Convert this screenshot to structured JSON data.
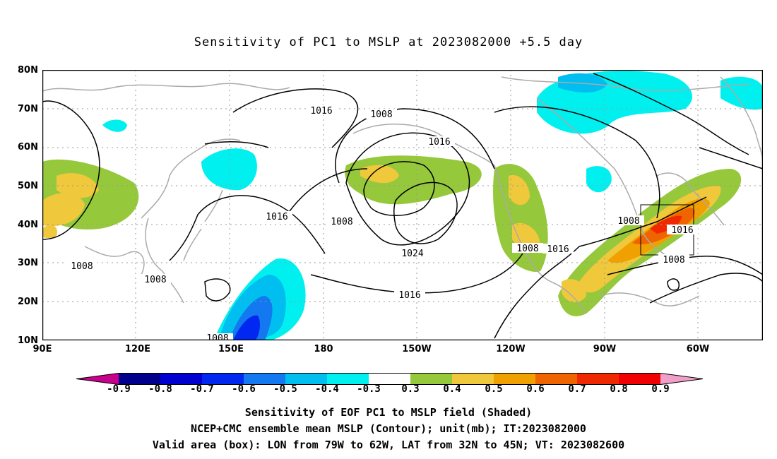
{
  "title": "Sensitivity of PC1 to MSLP at 2023082000 +5.5 day",
  "lat_labels": [
    "80N",
    "70N",
    "60N",
    "50N",
    "40N",
    "30N",
    "20N",
    "10N"
  ],
  "lon_labels": [
    "90E",
    "120E",
    "150E",
    "180",
    "150W",
    "120W",
    "90W",
    "60W"
  ],
  "contour_labels": [
    "1016",
    "1008",
    "1016",
    "1016",
    "1008",
    "1024",
    "1016",
    "1008",
    "1008",
    "1008",
    "1016",
    "1008",
    "1016",
    "1008",
    "1008"
  ],
  "colorbar": {
    "labels": [
      "-0.9",
      "-0.8",
      "-0.7",
      "-0.6",
      "-0.5",
      "-0.4",
      "-0.3",
      "0.3",
      "0.4",
      "0.5",
      "0.6",
      "0.7",
      "0.8",
      "0.9"
    ],
    "colors": [
      "#c8008c",
      "#00008c",
      "#0000d0",
      "#0028f0",
      "#1478f0",
      "#00bef0",
      "#00f0f0",
      "#ffffff",
      "#96c83c",
      "#f0c83c",
      "#f0a000",
      "#f06400",
      "#f02800",
      "#f00000",
      "#f0a0c8"
    ]
  },
  "footer": {
    "line1": "Sensitivity of EOF PC1 to MSLP field (Shaded)",
    "line2": "NCEP+CMC ensemble mean MSLP (Contour); unit(mb); IT:2023082000",
    "line3": "Valid area (box): LON from 79W to 62W, LAT from 32N to 45N; VT: 2023082600"
  }
}
